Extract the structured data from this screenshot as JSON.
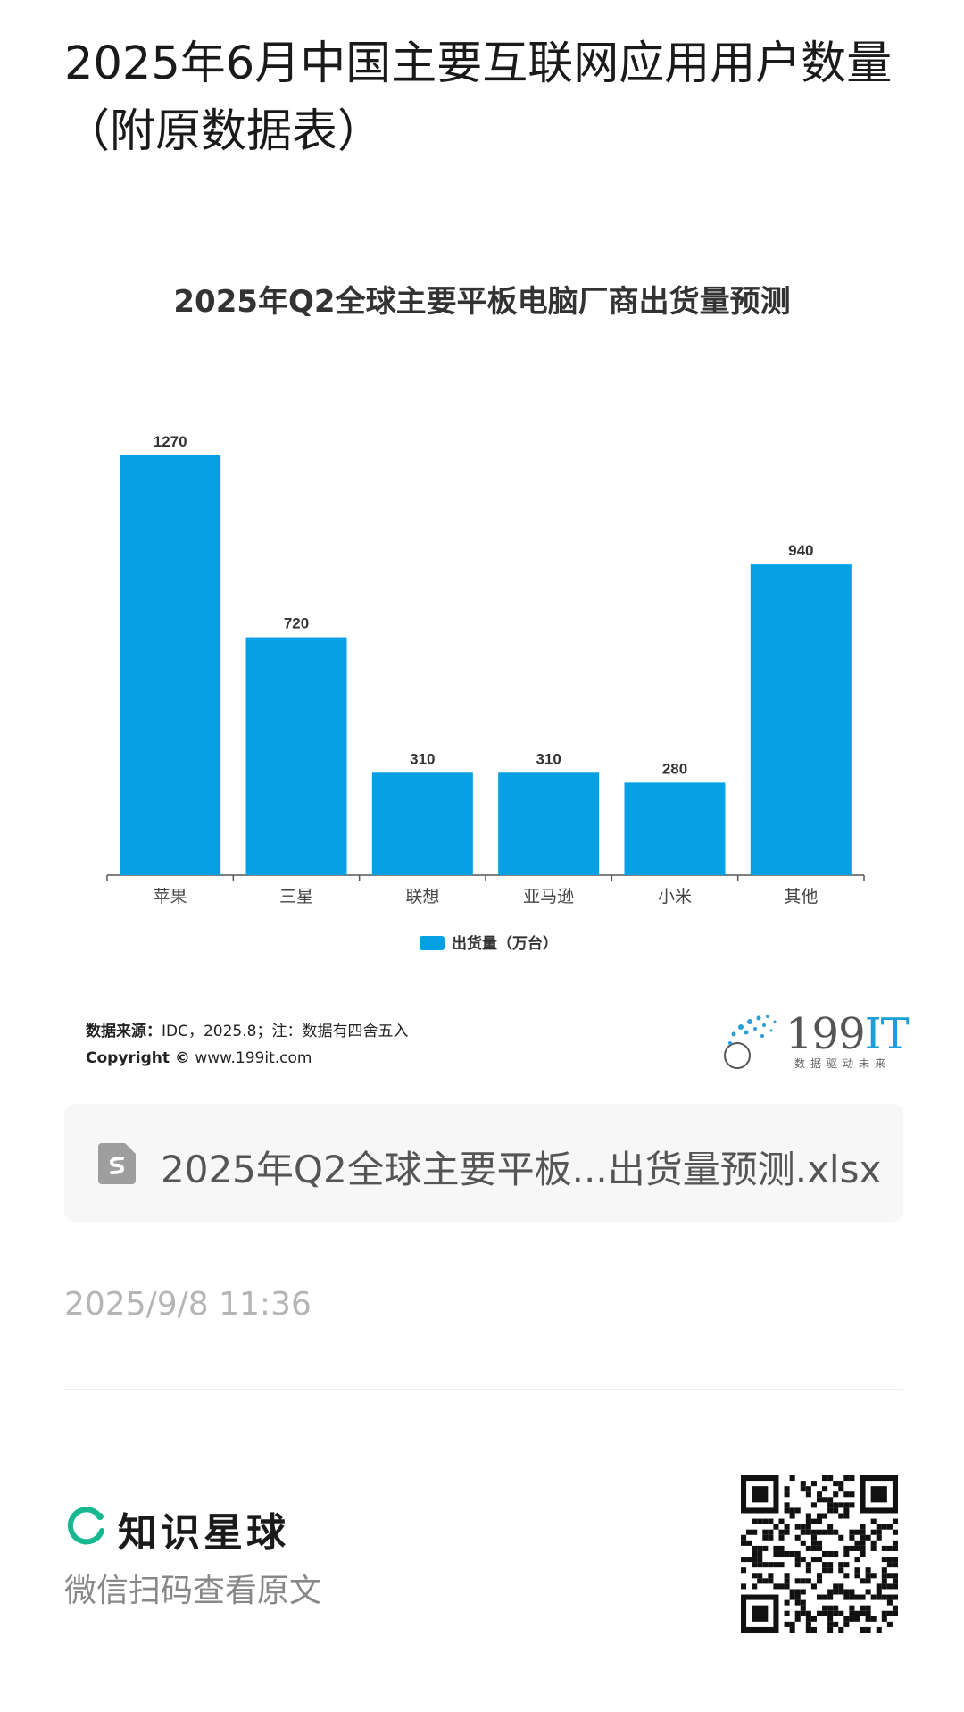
{
  "page": {
    "title": "2025年6月中国主要互联网应用用户数量（附原数据表）"
  },
  "chart_data": {
    "type": "bar",
    "title": "2025年Q2全球主要平板电脑厂商出货量预测",
    "categories": [
      "苹果",
      "三星",
      "联想",
      "亚马逊",
      "小米",
      "其他"
    ],
    "series": [
      {
        "name": "出货量（万台）",
        "values": [
          1270,
          720,
          310,
          310,
          280,
          940
        ]
      }
    ],
    "ylim": [
      0,
      1400
    ],
    "grid": false,
    "legend": "bottom-center",
    "bar_color": "#05a0e4"
  },
  "source": {
    "label": "数据来源：",
    "text": "IDC，2025.8；注：数据有四舍五入",
    "copyright_label": "Copyright ©",
    "copyright_url": "www.199it.com"
  },
  "logo": {
    "num": "199",
    "it": "IT",
    "sub": "数据驱动未来"
  },
  "file": {
    "name": "2025年Q2全球主要平板...出货量预测.xlsx",
    "icon": "spreadsheet-file-icon"
  },
  "timestamp": "2025/9/8 11:36",
  "footer": {
    "brand": "知识星球",
    "sub": "微信扫码查看原文",
    "icon": "planet-ring-icon",
    "qr_icon": "qr-code-icon"
  }
}
